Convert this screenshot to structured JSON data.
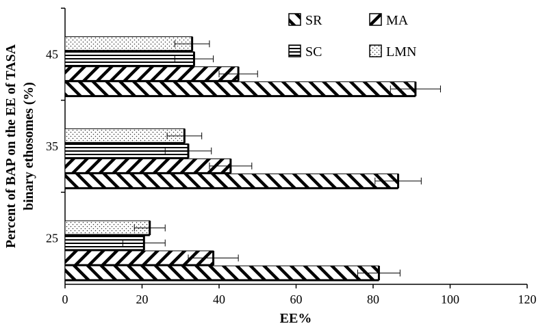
{
  "chart_data": {
    "type": "bar",
    "orientation": "horizontal",
    "categories": [
      "25",
      "35",
      "45"
    ],
    "series": [
      {
        "name": "SR",
        "pattern": "backslash-hatch",
        "values": [
          81.5,
          86.5,
          91.0
        ],
        "errors": [
          5.5,
          6.0,
          6.5
        ]
      },
      {
        "name": "MA",
        "pattern": "slash-hatch",
        "values": [
          38.5,
          43.0,
          45.0
        ],
        "errors": [
          6.5,
          5.5,
          5.0
        ]
      },
      {
        "name": "SC",
        "pattern": "horizontal-lines",
        "values": [
          20.5,
          32.0,
          33.5
        ],
        "errors": [
          5.5,
          6.0,
          5.0
        ]
      },
      {
        "name": "LMN",
        "pattern": "dots",
        "values": [
          22.0,
          31.0,
          33.0
        ],
        "errors": [
          4.0,
          4.5,
          4.5
        ]
      }
    ],
    "xlabel": "EE%",
    "ylabel_line1": "Percent of BAP on the EE of TASA",
    "ylabel_line2": "binary ethosomes (%)",
    "xlim": [
      0,
      120
    ],
    "xticks": [
      "0",
      "20",
      "40",
      "60",
      "80",
      "100",
      "120"
    ],
    "grid": false,
    "legend_position": "top-right"
  }
}
